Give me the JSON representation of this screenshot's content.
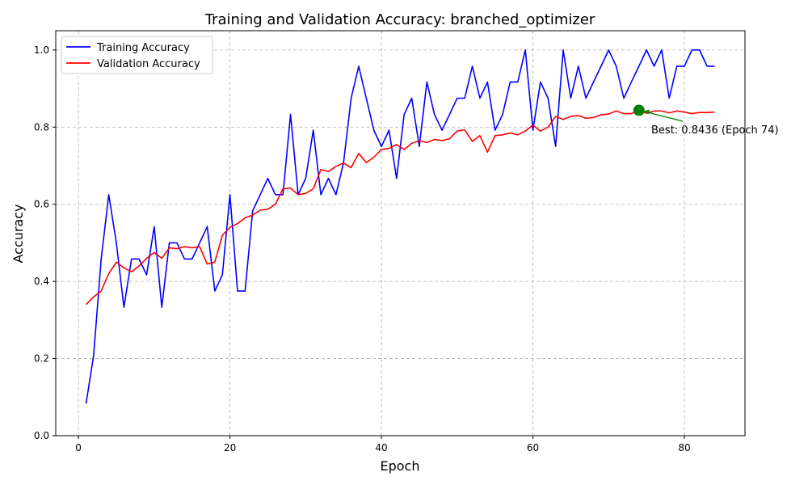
{
  "chart_data": {
    "type": "line",
    "title": "Training and Validation Accuracy: branched_optimizer",
    "xlabel": "Epoch",
    "ylabel": "Accuracy",
    "xlim": [
      -3,
      88
    ],
    "ylim": [
      0.0,
      1.05
    ],
    "xticks": [
      0,
      20,
      40,
      60,
      80
    ],
    "xtick_labels": [
      "0",
      "20",
      "40",
      "60",
      "80"
    ],
    "yticks": [
      0.0,
      0.2,
      0.4,
      0.6,
      0.8,
      1.0
    ],
    "ytick_labels": [
      "0.0",
      "0.2",
      "0.4",
      "0.6",
      "0.8",
      "1.0"
    ],
    "grid": true,
    "legend_position": "top-left",
    "x": [
      1,
      2,
      3,
      4,
      5,
      6,
      7,
      8,
      9,
      10,
      11,
      12,
      13,
      14,
      15,
      16,
      17,
      18,
      19,
      20,
      21,
      22,
      23,
      24,
      25,
      26,
      27,
      28,
      29,
      30,
      31,
      32,
      33,
      34,
      35,
      36,
      37,
      38,
      39,
      40,
      41,
      42,
      43,
      44,
      45,
      46,
      47,
      48,
      49,
      50,
      51,
      52,
      53,
      54,
      55,
      56,
      57,
      58,
      59,
      60,
      61,
      62,
      63,
      64,
      65,
      66,
      67,
      68,
      69,
      70,
      71,
      72,
      73,
      74,
      75,
      76,
      77,
      78,
      79,
      80,
      81,
      82,
      83,
      84
    ],
    "series": [
      {
        "name": "Training Accuracy",
        "color": "#0000ff",
        "values": [
          0.083,
          0.208,
          0.458,
          0.625,
          0.5,
          0.333,
          0.458,
          0.458,
          0.417,
          0.542,
          0.333,
          0.5,
          0.5,
          0.458,
          0.458,
          0.5,
          0.542,
          0.375,
          0.417,
          0.625,
          0.375,
          0.375,
          0.583,
          0.625,
          0.667,
          0.625,
          0.625,
          0.833,
          0.625,
          0.667,
          0.792,
          0.625,
          0.667,
          0.625,
          0.708,
          0.875,
          0.958,
          0.875,
          0.792,
          0.75,
          0.792,
          0.667,
          0.833,
          0.875,
          0.75,
          0.917,
          0.833,
          0.792,
          0.833,
          0.875,
          0.875,
          0.958,
          0.875,
          0.917,
          0.792,
          0.833,
          0.917,
          0.917,
          1.0,
          0.792,
          0.917,
          0.875,
          0.75,
          1.0,
          0.875,
          0.958,
          0.875,
          0.917,
          0.958,
          1.0,
          0.958,
          0.875,
          0.917,
          0.958,
          1.0,
          0.958,
          1.0,
          0.875,
          0.958,
          0.958,
          1.0,
          1.0,
          0.958,
          0.958
        ]
      },
      {
        "name": "Validation Accuracy",
        "color": "#ff0000",
        "values": [
          0.34,
          0.36,
          0.375,
          0.42,
          0.45,
          0.435,
          0.425,
          0.44,
          0.46,
          0.475,
          0.46,
          0.487,
          0.485,
          0.49,
          0.487,
          0.49,
          0.445,
          0.45,
          0.52,
          0.54,
          0.55,
          0.565,
          0.572,
          0.585,
          0.587,
          0.6,
          0.64,
          0.642,
          0.625,
          0.628,
          0.64,
          0.69,
          0.685,
          0.698,
          0.707,
          0.695,
          0.732,
          0.708,
          0.722,
          0.742,
          0.745,
          0.755,
          0.742,
          0.758,
          0.765,
          0.76,
          0.768,
          0.765,
          0.77,
          0.79,
          0.793,
          0.763,
          0.778,
          0.735,
          0.778,
          0.78,
          0.785,
          0.78,
          0.79,
          0.805,
          0.79,
          0.8,
          0.828,
          0.82,
          0.828,
          0.83,
          0.823,
          0.825,
          0.832,
          0.834,
          0.842,
          0.835,
          0.835,
          0.8436,
          0.836,
          0.842,
          0.842,
          0.837,
          0.842,
          0.839,
          0.835,
          0.838,
          0.838,
          0.839
        ]
      }
    ],
    "best_point": {
      "x": 74,
      "y": 0.8436,
      "color": "#008000",
      "label": "Best: 0.8436 (Epoch 74)"
    }
  }
}
